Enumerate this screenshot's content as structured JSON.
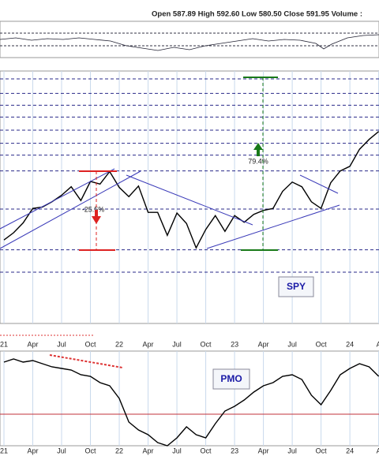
{
  "chart_data": [
    {
      "type": "line",
      "subtitle": "Open 587.89  High 592.60  Low 580.50  Close 591.95  Volume :",
      "categories": [
        "21",
        null,
        null,
        "Apr",
        null,
        null,
        "Jul",
        null,
        null,
        "Oct",
        null,
        null,
        "22",
        null,
        null,
        "Apr",
        null,
        null,
        "Jul",
        null,
        null,
        "Oct",
        null,
        null,
        "23",
        null,
        null,
        "Apr",
        null,
        null,
        "Jul",
        null,
        null,
        "Oct",
        null,
        null,
        "24",
        null,
        null,
        "A"
      ],
      "series": [
        {
          "name": "SPY",
          "color": "#000000",
          "values": [
            370,
            381,
            396,
            418,
            420,
            428,
            438,
            451,
            430,
            459,
            455,
            474,
            450,
            436,
            452,
            412,
            412,
            377,
            411,
            395,
            358,
            386,
            407,
            383,
            407,
            397,
            409,
            415,
            418,
            444,
            458,
            451,
            428,
            418,
            457,
            475,
            482,
            508,
            523,
            535
          ]
        }
      ],
      "ylim": [
        243,
        627
      ],
      "levels": [
        615,
        593,
        575,
        557,
        537,
        517,
        499,
        475,
        417,
        355,
        321
      ],
      "annotations": [
        "79.4%",
        "-25.5%"
      ],
      "grid": true
    },
    {
      "type": "line",
      "categories": [
        "21",
        null,
        null,
        "Apr",
        null,
        null,
        "Jul",
        null,
        null,
        "Oct",
        null,
        null,
        "22",
        null,
        null,
        "Apr",
        null,
        null,
        "Jul",
        null,
        null,
        "Oct",
        null,
        null,
        "23",
        null,
        null,
        "Apr",
        null,
        null,
        "Jul",
        null,
        null,
        "Oct",
        null,
        null,
        "24",
        null,
        null,
        "A"
      ],
      "series": [
        {
          "name": "PMO",
          "color": "#000000",
          "values": [
            3.3,
            3.5,
            3.3,
            3.4,
            3.2,
            3.0,
            2.9,
            2.8,
            2.5,
            2.4,
            2.0,
            1.8,
            1.0,
            -0.5,
            -1.0,
            -1.3,
            -1.8,
            -2.0,
            -1.5,
            -0.8,
            -1.3,
            -1.5,
            -0.6,
            0.2,
            0.5,
            0.9,
            1.4,
            1.8,
            2.0,
            2.4,
            2.5,
            2.2,
            1.2,
            0.6,
            1.5,
            2.5,
            2.9,
            3.2,
            3.0,
            2.4
          ]
        }
      ],
      "ylim": [
        -2,
        4
      ],
      "hline": 0,
      "hline_color": "#c0303a",
      "grid": true
    }
  ]
}
